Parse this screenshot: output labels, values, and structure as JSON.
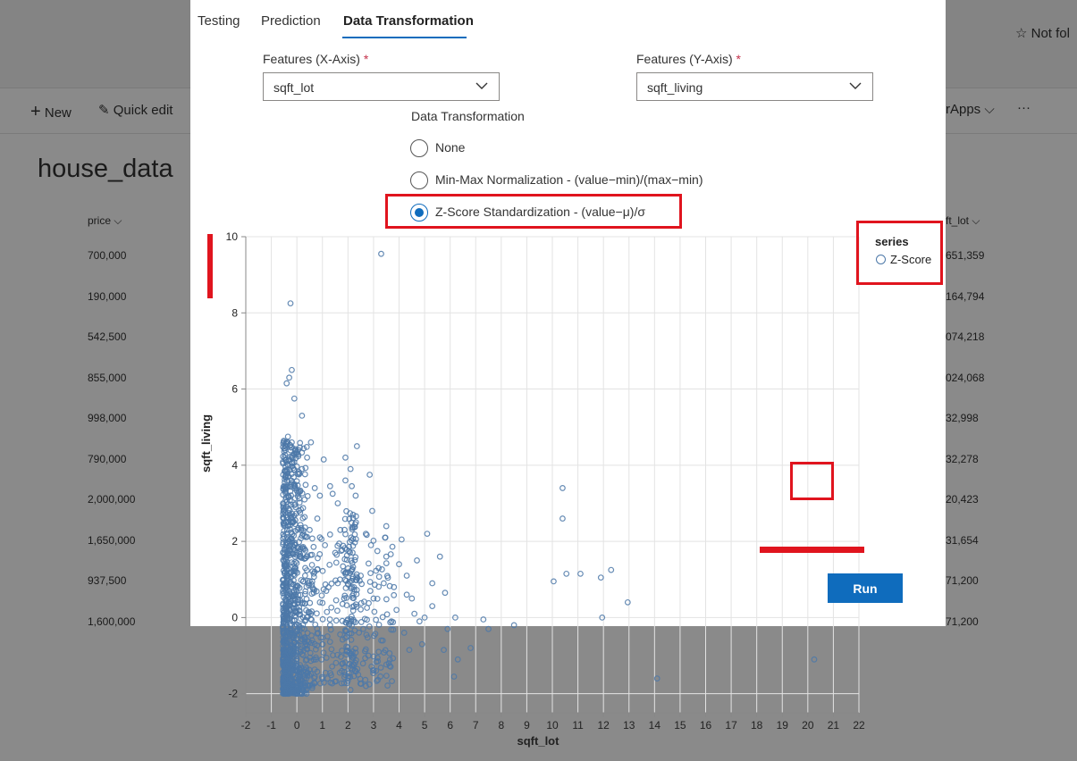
{
  "background": {
    "follow_label": "Not fol",
    "commands": {
      "new": "New",
      "quick_edit": "Quick edit",
      "apps": "rApps",
      "more": "···"
    },
    "list_title": "house_data",
    "columns": {
      "price": "price",
      "lot": "ft_lot"
    },
    "price_values": [
      "700,000",
      "190,000",
      "542,500",
      "855,000",
      "998,000",
      "790,000",
      "2,000,000",
      "1,650,000",
      "937,500",
      "1,600,000"
    ],
    "lot_values": [
      "651,359",
      "164,794",
      "074,218",
      "024,068",
      "32,998",
      "32,278",
      "20,423",
      "31,654",
      "71,200",
      "71,200"
    ]
  },
  "dialog": {
    "tabs": [
      {
        "label": "Testing",
        "active": false
      },
      {
        "label": "Prediction",
        "active": false
      },
      {
        "label": "Data Transformation",
        "active": true
      }
    ],
    "x_feature": {
      "label": "Features (X-Axis)",
      "required_mark": "*",
      "value": "sqft_lot"
    },
    "y_feature": {
      "label": "Features (Y-Axis)",
      "required_mark": "*",
      "value": "sqft_living"
    },
    "transformation": {
      "label": "Data Transformation",
      "options": [
        {
          "label": "None",
          "checked": false
        },
        {
          "label": "Min-Max Normalization - (value−min)/(max−min)",
          "checked": false
        },
        {
          "label": "Z-Score Standardization - (value−μ)/σ",
          "checked": true
        }
      ]
    },
    "run_label": "Run"
  },
  "chart_data": {
    "type": "scatter",
    "xlabel": "sqft_lot",
    "ylabel": "sqft_living",
    "xlim": [
      -2,
      22
    ],
    "ylim": [
      -2.5,
      10
    ],
    "x_ticks": [
      -2,
      -1,
      0,
      1,
      2,
      3,
      4,
      5,
      6,
      7,
      8,
      9,
      10,
      11,
      12,
      13,
      14,
      15,
      16,
      17,
      18,
      19,
      20,
      21,
      22
    ],
    "y_ticks": [
      -2,
      0,
      2,
      4,
      6,
      8,
      10
    ],
    "grid": true,
    "legend": {
      "title": "series",
      "placement": "right",
      "items": [
        "Z-Score"
      ]
    },
    "color": "#4c78a8",
    "series": [
      {
        "name": "Z-Score",
        "points": [
          [
            3.3,
            9.55
          ],
          [
            -0.25,
            8.25
          ],
          [
            -0.2,
            6.5
          ],
          [
            -0.4,
            6.15
          ],
          [
            -0.3,
            6.3
          ],
          [
            -0.1,
            5.75
          ],
          [
            0.2,
            5.3
          ],
          [
            -0.35,
            4.75
          ],
          [
            -0.2,
            4.6
          ],
          [
            0.55,
            4.6
          ],
          [
            1.9,
            4.2
          ],
          [
            1.05,
            4.15
          ],
          [
            2.35,
            4.5
          ],
          [
            2.1,
            3.9
          ],
          [
            2.85,
            3.75
          ],
          [
            0.2,
            3.9
          ],
          [
            0.7,
            3.4
          ],
          [
            1.3,
            3.45
          ],
          [
            2.15,
            3.45
          ],
          [
            1.6,
            3.0
          ],
          [
            0.3,
            3.1
          ],
          [
            0.9,
            3.2
          ],
          [
            1.4,
            3.25
          ],
          [
            2.3,
            3.2
          ],
          [
            3.5,
            2.4
          ],
          [
            3.45,
            2.1
          ],
          [
            4.1,
            2.05
          ],
          [
            5.1,
            2.2
          ],
          [
            5.6,
            1.6
          ],
          [
            4.7,
            1.5
          ],
          [
            4.3,
            1.1
          ],
          [
            5.3,
            0.9
          ],
          [
            4.5,
            0.5
          ],
          [
            5.8,
            0.65
          ],
          [
            6.2,
            0.0
          ],
          [
            5.3,
            0.3
          ],
          [
            4.8,
            -0.1
          ],
          [
            4.9,
            -0.7
          ],
          [
            5.9,
            -0.3
          ],
          [
            7.3,
            -0.05
          ],
          [
            7.5,
            -0.3
          ],
          [
            8.5,
            -0.2
          ],
          [
            6.8,
            -0.8
          ],
          [
            6.3,
            -1.1
          ],
          [
            6.15,
            -1.55
          ],
          [
            5.75,
            -0.85
          ],
          [
            4.4,
            -0.85
          ],
          [
            3.6,
            -1.2
          ],
          [
            3.2,
            -0.9
          ],
          [
            2.1,
            -1.9
          ],
          [
            1.2,
            -1.6
          ],
          [
            0.6,
            -1.85
          ],
          [
            10.4,
            3.4
          ],
          [
            10.4,
            2.6
          ],
          [
            10.55,
            1.15
          ],
          [
            11.1,
            1.15
          ],
          [
            10.05,
            0.95
          ],
          [
            11.9,
            1.05
          ],
          [
            12.3,
            1.25
          ],
          [
            11.95,
            0.0
          ],
          [
            12.95,
            0.4
          ],
          [
            14.1,
            -1.6
          ],
          [
            20.25,
            -1.1
          ],
          [
            3.5,
            1.6
          ],
          [
            4.0,
            1.4
          ],
          [
            2.9,
            1.9
          ],
          [
            3.2,
            1.3
          ],
          [
            3.8,
            0.8
          ],
          [
            2.5,
            1.1
          ],
          [
            1.7,
            2.3
          ],
          [
            2.7,
            2.2
          ],
          [
            3.9,
            0.2
          ],
          [
            4.2,
            -0.4
          ],
          [
            3.0,
            0.5
          ],
          [
            2.6,
            -0.3
          ],
          [
            3.3,
            -0.6
          ],
          [
            4.6,
            0.1
          ],
          [
            1.8,
            -1.2
          ],
          [
            2.4,
            -1.5
          ],
          [
            3.1,
            -1.4
          ],
          [
            1.5,
            1.7
          ],
          [
            2.2,
            2.7
          ],
          [
            0.8,
            2.6
          ],
          [
            1.1,
            1.9
          ],
          [
            0.5,
            2.3
          ],
          [
            0.9,
            0.4
          ],
          [
            1.3,
            -0.2
          ],
          [
            1.6,
            0.9
          ],
          [
            2.8,
            -1.0
          ],
          [
            3.7,
            -0.1
          ],
          [
            4.3,
            0.6
          ],
          [
            5.0,
            0.0
          ],
          [
            3.4,
            0.9
          ],
          [
            2.95,
            2.8
          ],
          [
            1.9,
            3.6
          ],
          [
            0.4,
            4.2
          ],
          [
            0.1,
            1.6
          ],
          [
            0.15,
            -0.9
          ],
          [
            0.05,
            0.4
          ],
          [
            0.25,
            2.2
          ],
          [
            0.35,
            -1.3
          ],
          [
            0.45,
            0.9
          ],
          [
            0.6,
            -0.6
          ],
          [
            0.7,
            1.2
          ],
          [
            0.55,
            0.1
          ],
          [
            -0.1,
            3.5
          ],
          [
            -0.05,
            2.9
          ],
          [
            0.05,
            4.4
          ],
          [
            -0.15,
            2.5
          ],
          [
            0.1,
            -1.7
          ],
          [
            0.75,
            -1.1
          ],
          [
            1.0,
            -0.7
          ],
          [
            1.15,
            0.7
          ]
        ],
        "cluster": {
          "description": "dense band near x≈-0.5…0.5, y≈-2…4.5",
          "x_range": [
            -0.55,
            0.5
          ],
          "y_range": [
            -2.0,
            4.7
          ]
        }
      }
    ]
  }
}
